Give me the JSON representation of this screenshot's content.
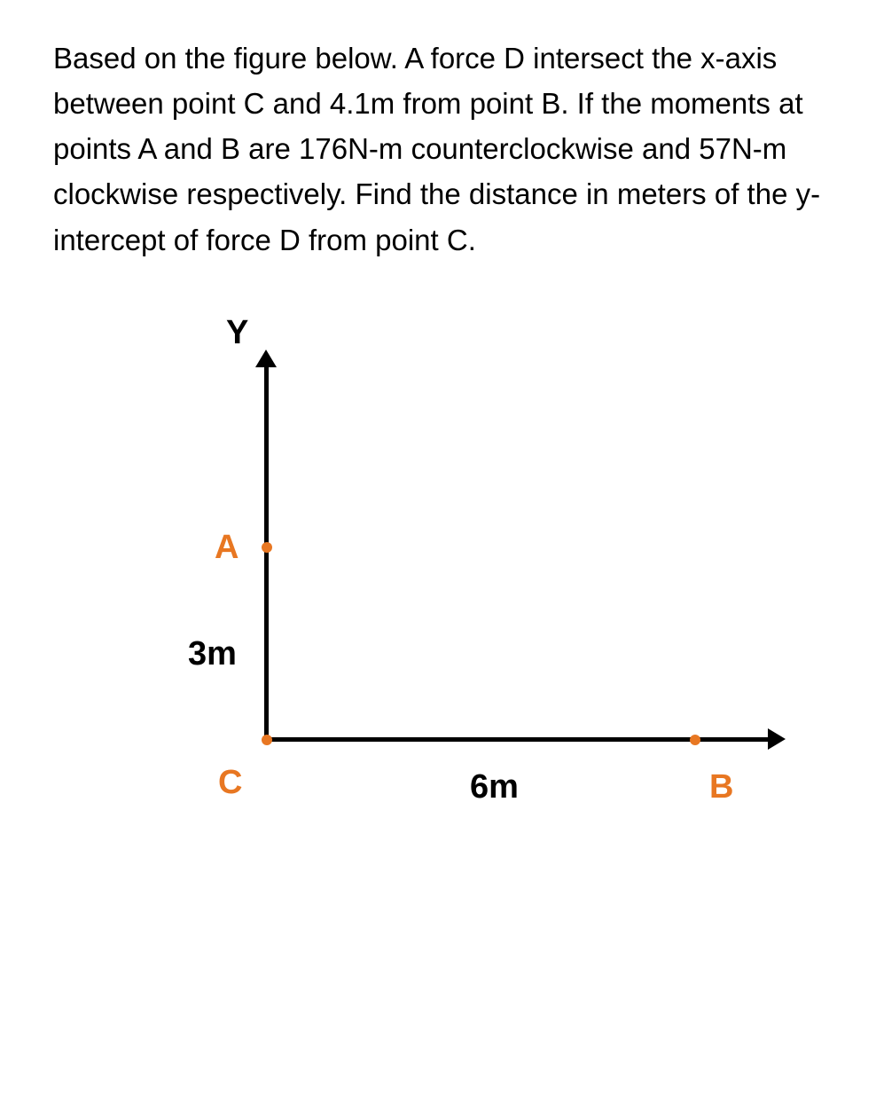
{
  "problem": {
    "text": "Based on the figure below. A force D intersect the x-axis between point C and 4.1m from point B. If the moments at points A and B are 176N-m counterclockwise and 57N-m clockwise respectively. Find the distance in meters of the y-intercept of force D from point C."
  },
  "diagram": {
    "type": "coordinate-axes",
    "y_axis_label": "Y",
    "points": {
      "A": {
        "label": "A",
        "color": "#e87722",
        "position": "on y-axis above origin"
      },
      "B": {
        "label": "B",
        "color": "#e87722",
        "position": "on x-axis right of origin at 6m"
      },
      "C": {
        "label": "C",
        "color": "#e87722",
        "position": "origin"
      }
    },
    "distances": {
      "A_to_C": {
        "label": "3m",
        "value": 3,
        "unit": "m"
      },
      "C_to_B": {
        "label": "6m",
        "value": 6,
        "unit": "m"
      }
    },
    "colors": {
      "axis": "#000000",
      "point": "#e87722",
      "point_label": "#e87722",
      "distance_label": "#000000",
      "background": "#ffffff"
    },
    "typography": {
      "problem_fontsize": 33,
      "label_fontsize": 38,
      "label_weight": "bold"
    },
    "axis_style": {
      "line_width": 5,
      "arrow_size": 20
    }
  }
}
